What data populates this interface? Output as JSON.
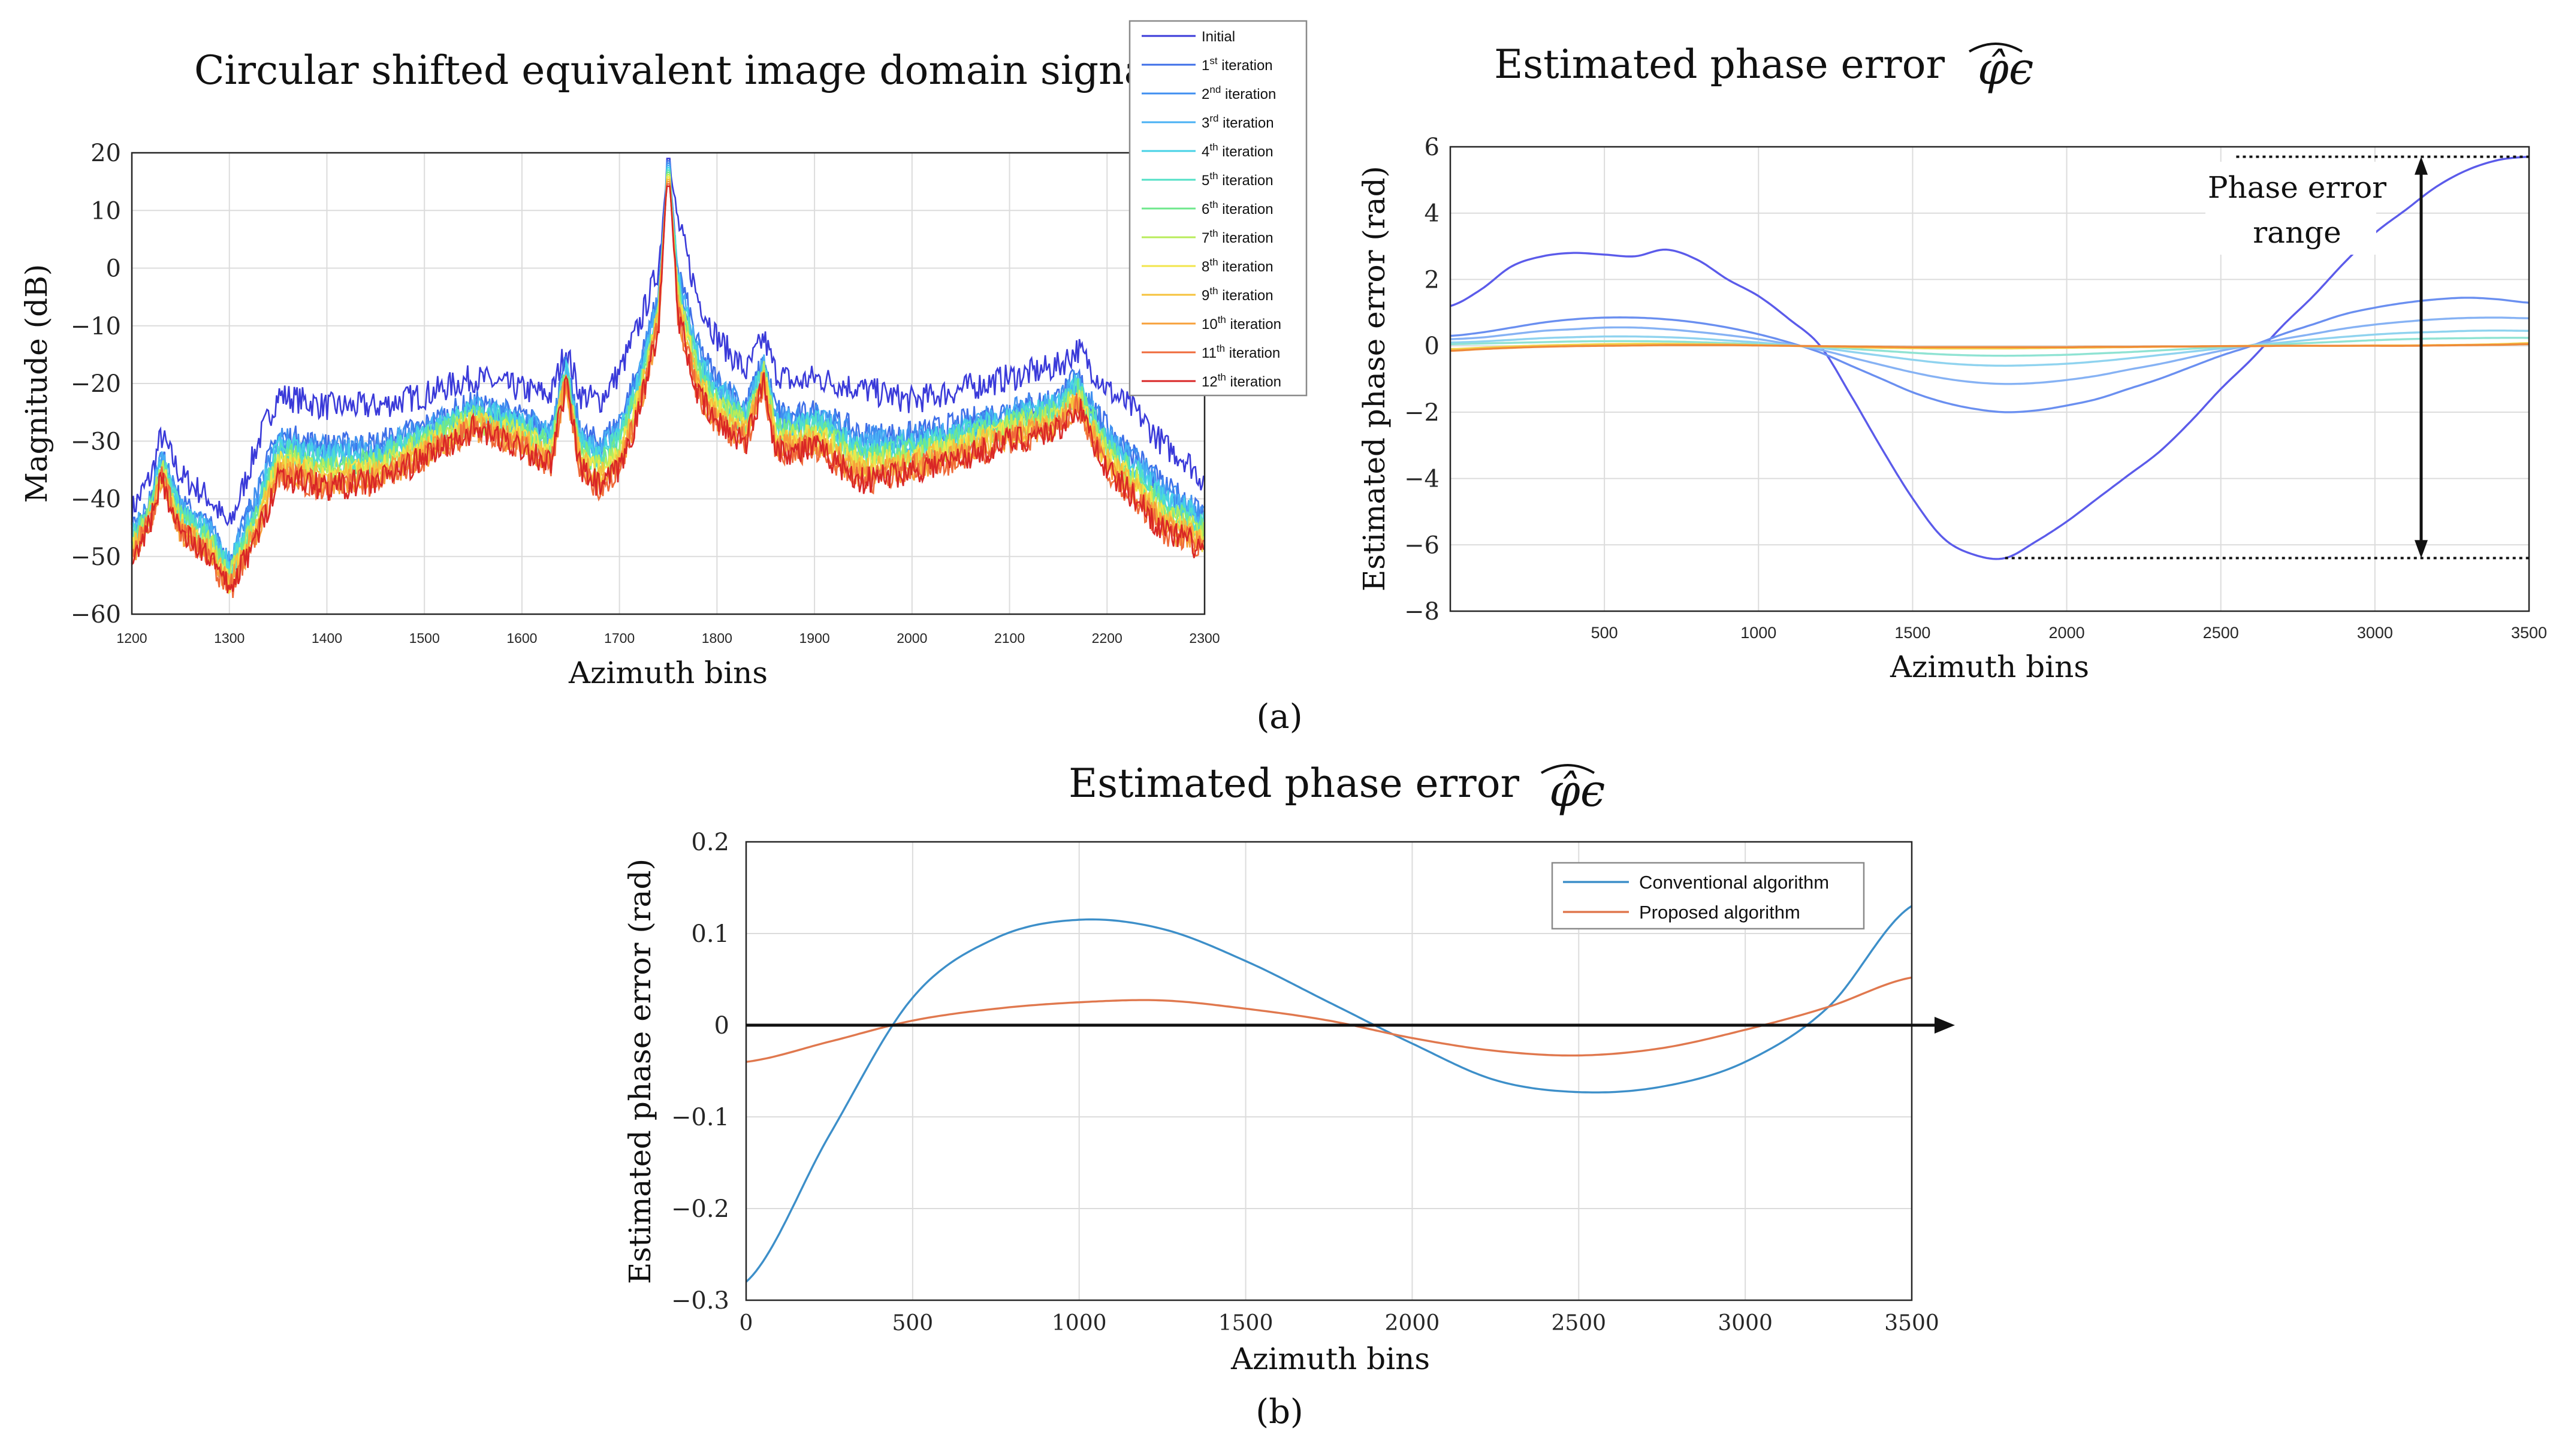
{
  "panel_labels": {
    "a": "(a)",
    "b": "(b)"
  },
  "annotation": {
    "line1": "Phase error",
    "line2": "range"
  },
  "chart_data": [
    {
      "id": "a-left",
      "type": "line",
      "title": "Circular shifted equivalent image domain signal",
      "xlabel": "Azimuth bins",
      "ylabel": "Magnitude (dB)",
      "xlim": [
        1200,
        2300
      ],
      "ylim": [
        -60,
        20
      ],
      "xticks": [
        1200,
        1300,
        1400,
        1500,
        1600,
        1700,
        1800,
        1900,
        2000,
        2100,
        2200,
        2300
      ],
      "yticks": [
        20,
        10,
        0,
        -10,
        -20,
        -30,
        -40,
        -50,
        -60
      ],
      "grid": true,
      "legend": "top-right, outside",
      "peak": {
        "x": 1750,
        "y": 19
      },
      "series": [
        {
          "name": "Initial",
          "base": "Initial",
          "sup": "",
          "suffix": "",
          "color": "#3a3ad9"
        },
        {
          "name": "1st iteration",
          "base": "1",
          "sup": "st",
          "suffix": " iteration",
          "color": "#3d6ee8"
        },
        {
          "name": "2nd iteration",
          "base": "2",
          "sup": "nd",
          "suffix": " iteration",
          "color": "#3f8ff0"
        },
        {
          "name": "3rd iteration",
          "base": "3",
          "sup": "rd",
          "suffix": " iteration",
          "color": "#48b0f4"
        },
        {
          "name": "4th iteration",
          "base": "4",
          "sup": "th",
          "suffix": " iteration",
          "color": "#46d2e6"
        },
        {
          "name": "5th iteration",
          "base": "5",
          "sup": "th",
          "suffix": " iteration",
          "color": "#52e0c6"
        },
        {
          "name": "6th iteration",
          "base": "6",
          "sup": "th",
          "suffix": " iteration",
          "color": "#6fe88c"
        },
        {
          "name": "7th iteration",
          "base": "7",
          "sup": "th",
          "suffix": " iteration",
          "color": "#b8ec5a"
        },
        {
          "name": "8th iteration",
          "base": "8",
          "sup": "th",
          "suffix": " iteration",
          "color": "#f2e64b"
        },
        {
          "name": "9th iteration",
          "base": "9",
          "sup": "th",
          "suffix": " iteration",
          "color": "#f6c23c"
        },
        {
          "name": "10th iteration",
          "base": "10",
          "sup": "th",
          "suffix": " iteration",
          "color": "#f7a03a"
        },
        {
          "name": "11th iteration",
          "base": "11",
          "sup": "th",
          "suffix": " iteration",
          "color": "#ef6a3a"
        },
        {
          "name": "12th iteration",
          "base": "12",
          "sup": "th",
          "suffix": " iteration",
          "color": "#d92626"
        }
      ],
      "envelope": {
        "x": [
          1200,
          1220,
          1230,
          1250,
          1280,
          1300,
          1330,
          1350,
          1400,
          1450,
          1500,
          1550,
          1600,
          1630,
          1645,
          1660,
          1680,
          1700,
          1720,
          1740,
          1750,
          1760,
          1780,
          1800,
          1830,
          1848,
          1860,
          1880,
          1900,
          1950,
          2000,
          2050,
          2100,
          2150,
          2170,
          2200,
          2230,
          2260,
          2280,
          2300
        ],
        "initial": [
          -42,
          -36,
          -29,
          -36,
          -40,
          -45,
          -30,
          -22,
          -24,
          -24,
          -22,
          -19,
          -21,
          -22,
          -14,
          -22,
          -23,
          -18,
          -10,
          0,
          19,
          8,
          -5,
          -12,
          -18,
          -12,
          -18,
          -20,
          -19,
          -21,
          -23,
          -21,
          -19,
          -17,
          -14,
          -21,
          -25,
          -31,
          -33,
          -37
        ],
        "final": [
          -50,
          -44,
          -36,
          -46,
          -50,
          -56,
          -46,
          -36,
          -38,
          -37,
          -33,
          -28,
          -31,
          -34,
          -20,
          -35,
          -38,
          -35,
          -25,
          -10,
          19,
          -8,
          -22,
          -27,
          -30,
          -20,
          -31,
          -32,
          -31,
          -37,
          -35,
          -33,
          -30,
          -28,
          -24,
          -35,
          -40,
          -46,
          -47,
          -49
        ]
      }
    },
    {
      "id": "a-right",
      "type": "line",
      "title": "Estimated phase error",
      "title_symbol": "φ̂ϵ",
      "xlabel": "Azimuth bins",
      "ylabel": "Estimated phase error (rad)",
      "xlim": [
        0,
        3500
      ],
      "ylim": [
        -8,
        6
      ],
      "xticks": [
        500,
        1000,
        1500,
        2000,
        2500,
        3000,
        3500
      ],
      "yticks": [
        6,
        4,
        2,
        0,
        -2,
        -4,
        -6,
        -8
      ],
      "grid": true,
      "range_annotation": {
        "upper": 5.7,
        "lower": -6.4,
        "x": 3150
      },
      "x": [
        0,
        100,
        200,
        300,
        400,
        500,
        600,
        700,
        800,
        900,
        1000,
        1100,
        1200,
        1300,
        1400,
        1500,
        1600,
        1700,
        1800,
        1900,
        2000,
        2100,
        2200,
        2300,
        2400,
        2500,
        2600,
        2700,
        2800,
        2900,
        3000,
        3100,
        3200,
        3300,
        3400,
        3500
      ],
      "series": [
        {
          "name": "Initial",
          "color": "#5b5bea",
          "values": [
            1.2,
            1.7,
            2.4,
            2.7,
            2.8,
            2.75,
            2.7,
            2.9,
            2.6,
            2.0,
            1.5,
            0.8,
            0.0,
            -1.5,
            -3.1,
            -4.6,
            -5.8,
            -6.3,
            -6.4,
            -5.9,
            -5.3,
            -4.6,
            -3.9,
            -3.2,
            -2.3,
            -1.3,
            -0.4,
            0.6,
            1.5,
            2.5,
            3.4,
            4.1,
            4.8,
            5.3,
            5.6,
            5.7
          ]
        },
        {
          "name": "1st iteration",
          "color": "#6a8ff0",
          "values": [
            0.3,
            0.4,
            0.55,
            0.7,
            0.8,
            0.85,
            0.85,
            0.8,
            0.7,
            0.55,
            0.35,
            0.1,
            -0.2,
            -0.6,
            -1.0,
            -1.4,
            -1.7,
            -1.9,
            -2.0,
            -1.95,
            -1.8,
            -1.6,
            -1.3,
            -1.0,
            -0.65,
            -0.3,
            0.0,
            0.35,
            0.65,
            0.95,
            1.15,
            1.3,
            1.4,
            1.45,
            1.4,
            1.3
          ]
        },
        {
          "name": "2nd iteration",
          "color": "#86b2f4",
          "values": [
            0.2,
            0.25,
            0.35,
            0.45,
            0.5,
            0.55,
            0.55,
            0.5,
            0.42,
            0.32,
            0.2,
            0.05,
            -0.12,
            -0.35,
            -0.58,
            -0.8,
            -0.98,
            -1.1,
            -1.15,
            -1.12,
            -1.03,
            -0.9,
            -0.72,
            -0.55,
            -0.35,
            -0.15,
            0.02,
            0.2,
            0.36,
            0.52,
            0.64,
            0.73,
            0.8,
            0.84,
            0.85,
            0.83
          ]
        },
        {
          "name": "3rd iteration",
          "color": "#8fd3ef",
          "values": [
            0.1,
            0.13,
            0.18,
            0.23,
            0.26,
            0.28,
            0.28,
            0.26,
            0.22,
            0.16,
            0.1,
            0.02,
            -0.06,
            -0.18,
            -0.3,
            -0.42,
            -0.52,
            -0.58,
            -0.6,
            -0.58,
            -0.54,
            -0.47,
            -0.38,
            -0.28,
            -0.18,
            -0.08,
            0.01,
            0.1,
            0.19,
            0.27,
            0.34,
            0.39,
            0.42,
            0.45,
            0.46,
            0.45
          ]
        },
        {
          "name": "4th iteration",
          "color": "#8fe3d3",
          "values": [
            0.05,
            0.07,
            0.09,
            0.11,
            0.13,
            0.14,
            0.14,
            0.13,
            0.11,
            0.08,
            0.05,
            0.01,
            -0.03,
            -0.09,
            -0.15,
            -0.21,
            -0.26,
            -0.29,
            -0.3,
            -0.29,
            -0.27,
            -0.23,
            -0.19,
            -0.14,
            -0.09,
            -0.04,
            0.0,
            0.05,
            0.09,
            0.13,
            0.17,
            0.2,
            0.22,
            0.23,
            0.24,
            0.24
          ]
        },
        {
          "name": "8th iteration",
          "color": "#f2d24b",
          "values": [
            -0.1,
            -0.06,
            -0.02,
            0.01,
            0.03,
            0.05,
            0.06,
            0.06,
            0.05,
            0.04,
            0.02,
            0.0,
            -0.02,
            -0.04,
            -0.06,
            -0.07,
            -0.08,
            -0.08,
            -0.08,
            -0.07,
            -0.06,
            -0.05,
            -0.04,
            -0.03,
            -0.02,
            -0.01,
            0.0,
            0.0,
            0.0,
            0.0,
            0.01,
            0.01,
            0.02,
            0.03,
            0.05,
            0.08
          ]
        },
        {
          "name": "12th iteration",
          "color": "#ef8a3a",
          "values": [
            -0.15,
            -0.1,
            -0.06,
            -0.03,
            -0.01,
            0.0,
            0.01,
            0.02,
            0.02,
            0.02,
            0.01,
            0.0,
            -0.01,
            -0.02,
            -0.03,
            -0.04,
            -0.04,
            -0.04,
            -0.04,
            -0.04,
            -0.04,
            -0.03,
            -0.03,
            -0.02,
            -0.02,
            -0.01,
            -0.01,
            0.0,
            0.0,
            0.0,
            0.0,
            0.0,
            0.01,
            0.02,
            0.03,
            0.05
          ]
        }
      ]
    },
    {
      "id": "b",
      "type": "line",
      "title": "Estimated phase error",
      "title_symbol": "φ̂ϵ",
      "xlabel": "Azimuth bins",
      "ylabel": "Estimated phase error (rad)",
      "xlim": [
        0,
        3500
      ],
      "ylim": [
        -0.3,
        0.2
      ],
      "xticks": [
        0,
        500,
        1000,
        1500,
        2000,
        2500,
        3000,
        3500
      ],
      "yticks": [
        0.2,
        0.1,
        0,
        -0.1,
        -0.2,
        -0.3
      ],
      "ytick_labels": [
        "0.2",
        "0.1",
        "0",
        "−0.1",
        "−0.2",
        "−0.3"
      ],
      "grid": true,
      "legend": "top-right",
      "zero_arrow": true,
      "x": [
        0,
        250,
        500,
        750,
        1000,
        1250,
        1500,
        1750,
        2000,
        2250,
        2500,
        2750,
        3000,
        3250,
        3500
      ],
      "series": [
        {
          "name": "Conventional algorithm",
          "color": "#3d8fc9",
          "values": [
            -0.28,
            -0.12,
            0.03,
            0.095,
            0.115,
            0.105,
            0.07,
            0.025,
            -0.02,
            -0.06,
            -0.073,
            -0.067,
            -0.04,
            0.02,
            0.13
          ]
        },
        {
          "name": "Proposed algorithm",
          "color": "#e0784e",
          "values": [
            -0.04,
            -0.018,
            0.005,
            0.018,
            0.025,
            0.027,
            0.018,
            0.005,
            -0.014,
            -0.028,
            -0.033,
            -0.025,
            -0.005,
            0.02,
            0.052
          ]
        }
      ]
    }
  ]
}
